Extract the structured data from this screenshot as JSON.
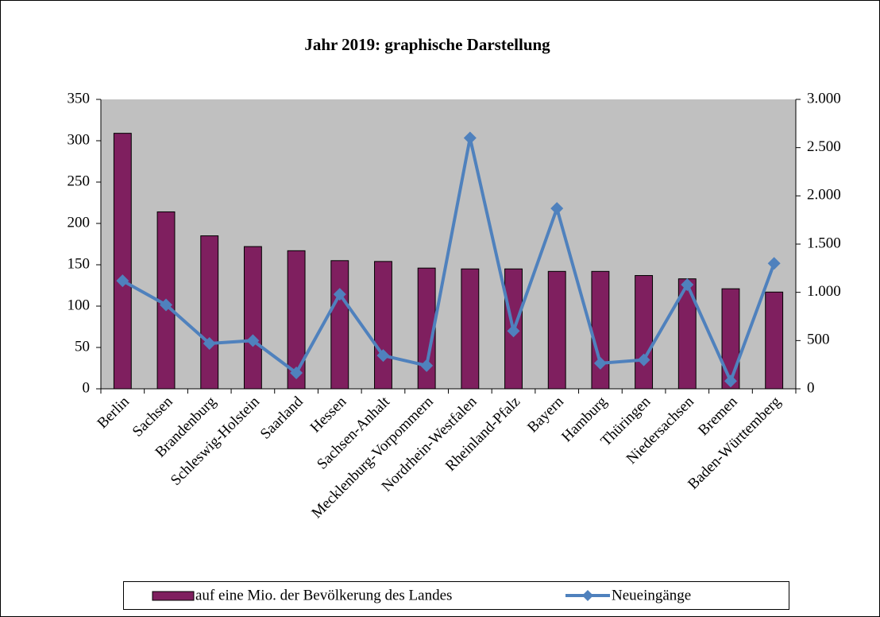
{
  "chart_data": {
    "type": "bar_line",
    "title": "Jahr 2019: graphische Darstellung",
    "categories": [
      "Berlin",
      "Sachsen",
      "Brandenburg",
      "Schleswig-Holstein",
      "Saarland",
      "Hessen",
      "Sachsen-Anhalt",
      "Mecklenburg-Vorpommern",
      "Nordrhein-Westfalen",
      "Rheinland-Pfalz",
      "Bayern",
      "Hamburg",
      "Thüringen",
      "Niedersachsen",
      "Bremen",
      "Baden-Württemberg"
    ],
    "series": [
      {
        "name": "auf eine Mio. der Bevölkerung des Landes",
        "type": "bar",
        "color": "#7f1f5f",
        "values": [
          309,
          214,
          185,
          172,
          167,
          155,
          154,
          146,
          145,
          145,
          142,
          142,
          137,
          133,
          121,
          117
        ]
      },
      {
        "name": "Neueingänge",
        "type": "line",
        "axis": "y2",
        "color": "#4f81bd",
        "values": [
          1120,
          870,
          470,
          500,
          165,
          980,
          345,
          240,
          2600,
          600,
          1870,
          265,
          300,
          1080,
          80,
          1300
        ]
      }
    ],
    "ylim": [
      0,
      350
    ],
    "yticks": [
      0,
      50,
      100,
      150,
      200,
      250,
      300,
      350
    ],
    "y2lim": [
      0,
      3000
    ],
    "y2ticks": [
      0,
      500,
      {
        "value": 1000,
        "label": "1.000"
      },
      {
        "value": 1500,
        "label": "1.500"
      },
      {
        "value": 2000,
        "label": "2.000"
      },
      {
        "value": 2500,
        "label": "2.500"
      },
      {
        "value": 3000,
        "label": "3.000"
      }
    ],
    "plot_background": "#c0c0c0",
    "legend": "bottom"
  }
}
